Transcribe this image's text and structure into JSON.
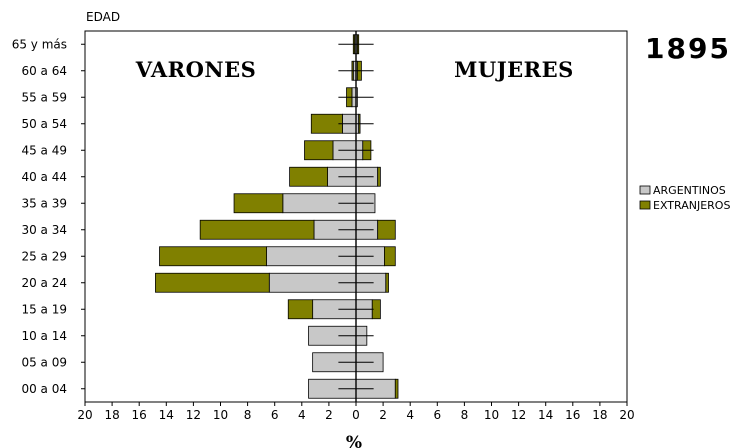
{
  "chart_data": {
    "type": "bar",
    "orientation": "horizontal-population-pyramid",
    "year": "1895",
    "y_axis_title": "EDAD",
    "x_axis_title": "%",
    "left_label": "VARONES",
    "right_label": "MUJERES",
    "categories": [
      "65 y más",
      "60 a 64",
      "55 a 59",
      "50 a 54",
      "45 a 49",
      "40 a 44",
      "35 a 39",
      "30 a 34",
      "25 a 29",
      "20 a 24",
      "15 a 19",
      "10 a 14",
      "05 a 09",
      "00 a 04"
    ],
    "xlim": [
      -20,
      20
    ],
    "x_ticks": [
      -20,
      -18,
      -16,
      -14,
      -12,
      -10,
      -8,
      -6,
      -4,
      -2,
      0,
      2,
      4,
      6,
      8,
      10,
      12,
      14,
      16,
      18,
      20
    ],
    "x_tick_labels": [
      "20",
      "18",
      "16",
      "14",
      "12",
      "10",
      "8",
      "6",
      "4",
      "2",
      "0",
      "2",
      "4",
      "6",
      "8",
      "10",
      "12",
      "14",
      "16",
      "18",
      "20"
    ],
    "series": [
      {
        "name": "ARGENTINOS",
        "color": "#c8c8c8",
        "male": [
          0.1,
          0.2,
          0.3,
          1.0,
          1.7,
          2.1,
          5.4,
          3.1,
          6.6,
          6.4,
          3.2,
          3.5,
          3.2,
          3.5
        ],
        "female": [
          0.1,
          0.1,
          0.1,
          0.2,
          0.5,
          1.6,
          1.4,
          1.6,
          2.1,
          2.2,
          1.2,
          0.8,
          2.0,
          2.9
        ]
      },
      {
        "name": "EXTRANJEROS",
        "color": "#808000",
        "male": [
          0.1,
          0.1,
          0.4,
          2.3,
          2.1,
          2.8,
          3.6,
          8.4,
          7.9,
          8.4,
          1.8,
          0.0,
          0.0,
          0.0
        ],
        "female": [
          0.1,
          0.3,
          0.0,
          0.1,
          0.6,
          0.2,
          0.0,
          1.3,
          0.8,
          0.2,
          0.6,
          0.0,
          0.0,
          0.2
        ]
      }
    ],
    "legend_position": "right",
    "grid": false
  }
}
